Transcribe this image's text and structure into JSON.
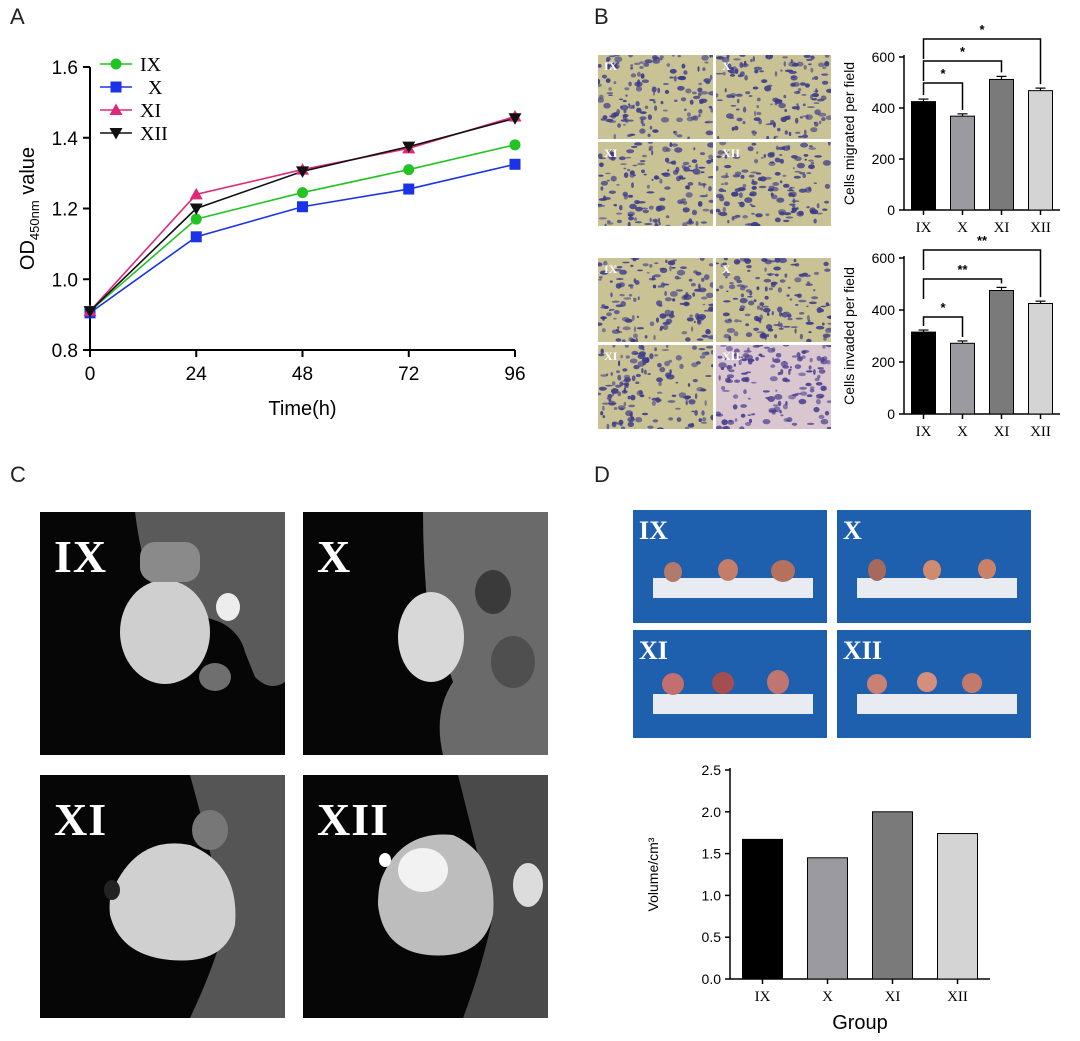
{
  "panels": {
    "a": "A",
    "b": "B",
    "c": "C",
    "d": "D"
  },
  "chart_data": [
    {
      "id": "growth",
      "type": "line",
      "x": [
        0,
        24,
        48,
        72,
        96
      ],
      "series": [
        {
          "name": "IX",
          "values": [
            0.91,
            1.17,
            1.245,
            1.31,
            1.38
          ],
          "color": "#22c322",
          "marker": "circle"
        },
        {
          "name": "X",
          "values": [
            0.905,
            1.12,
            1.205,
            1.255,
            1.325
          ],
          "color": "#1a33e6",
          "marker": "square"
        },
        {
          "name": "XI",
          "values": [
            0.91,
            1.24,
            1.31,
            1.37,
            1.46
          ],
          "color": "#e0287a",
          "marker": "triangle-up"
        },
        {
          "name": "XII",
          "values": [
            0.91,
            1.2,
            1.305,
            1.375,
            1.455
          ],
          "color": "#111111",
          "marker": "triangle-down"
        }
      ],
      "xlabel": "Time(h)",
      "ylabel_main": "OD",
      "ylabel_sub": "450nm",
      "ylabel_tail": " value",
      "xticks": [
        "0",
        "24",
        "48",
        "72",
        "96"
      ],
      "yticks": [
        "0.8",
        "1.0",
        "1.2",
        "1.4",
        "1.6"
      ],
      "ylim": [
        0.8,
        1.6
      ],
      "xlim": [
        0,
        96
      ],
      "legend": "top-left"
    },
    {
      "id": "migration",
      "type": "bar",
      "categories": [
        "IX",
        "X",
        "XI",
        "XII"
      ],
      "values": [
        425,
        368,
        512,
        468
      ],
      "errors": [
        10,
        9,
        12,
        10
      ],
      "colors": [
        "#000000",
        "#9a9aa0",
        "#7a7a7a",
        "#d4d4d4"
      ],
      "ylabel": "Cells migrated per field",
      "yticks": [
        "0",
        "200",
        "400",
        "600"
      ],
      "ylim": [
        0,
        600
      ],
      "significance": [
        {
          "from": "IX",
          "to": "X",
          "label": "*"
        },
        {
          "from": "IX",
          "to": "XI",
          "label": "*"
        },
        {
          "from": "IX",
          "to": "XII",
          "label": "*"
        }
      ]
    },
    {
      "id": "invasion",
      "type": "bar",
      "categories": [
        "IX",
        "X",
        "XI",
        "XII"
      ],
      "values": [
        315,
        272,
        475,
        425
      ],
      "errors": [
        8,
        9,
        12,
        9
      ],
      "colors": [
        "#000000",
        "#9a9aa0",
        "#7a7a7a",
        "#d4d4d4"
      ],
      "ylabel": "Cells invaded per field",
      "yticks": [
        "0",
        "200",
        "400",
        "600"
      ],
      "ylim": [
        0,
        600
      ],
      "significance": [
        {
          "from": "IX",
          "to": "X",
          "label": "*"
        },
        {
          "from": "IX",
          "to": "XI",
          "label": "**"
        },
        {
          "from": "IX",
          "to": "XII",
          "label": "**"
        }
      ]
    },
    {
      "id": "volume",
      "type": "bar",
      "categories": [
        "IX",
        "X",
        "XI",
        "XII"
      ],
      "values": [
        1.67,
        1.45,
        2.0,
        1.74
      ],
      "colors": [
        "#000000",
        "#9a9aa0",
        "#7a7a7a",
        "#d4d4d4"
      ],
      "xlabel": "Group",
      "ylabel": "Volume/cm³",
      "yticks": [
        "0.0",
        "0.5",
        "1.0",
        "1.5",
        "2.0",
        "2.5"
      ],
      "ylim": [
        0,
        2.5
      ]
    }
  ],
  "images": {
    "migration": [
      "IX",
      "X",
      "XI",
      "XII"
    ],
    "invasion": [
      "IX",
      "X",
      "XI",
      "XII"
    ],
    "mri": [
      "IX",
      "X",
      "XI",
      "XII"
    ],
    "tumors": [
      "IX",
      "X",
      "XI",
      "XII"
    ]
  }
}
